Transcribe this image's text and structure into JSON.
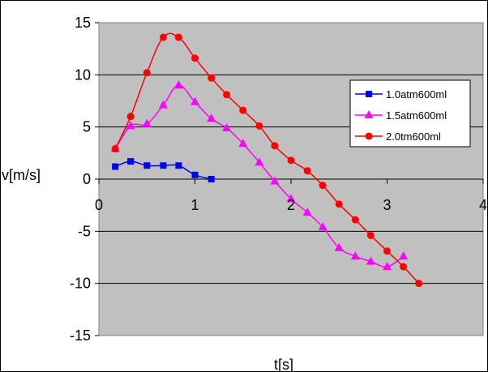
{
  "chart_data": {
    "type": "line",
    "title": "",
    "xlabel": "t[s]",
    "ylabel": "v[m/s]",
    "xlim": [
      0,
      4
    ],
    "ylim": [
      -15,
      15
    ],
    "xticks": [
      "0",
      "1",
      "2",
      "3",
      "4"
    ],
    "yticks": [
      "15",
      "10",
      "5",
      "0",
      "-5",
      "-10",
      "-15"
    ],
    "grid": "horizontal",
    "legend_position": "right",
    "plot_background": "#c0c0c0",
    "series": [
      {
        "name": "1.0atm600ml",
        "color": "#0000ff",
        "marker": "square",
        "x": [
          0.17,
          0.33,
          0.5,
          0.67,
          0.83,
          1.0,
          1.17
        ],
        "y": [
          1.2,
          1.7,
          1.3,
          1.3,
          1.3,
          0.4,
          0.0
        ]
      },
      {
        "name": "1.5atm600ml",
        "color": "#ff00ff",
        "marker": "triangle",
        "x": [
          0.17,
          0.33,
          0.5,
          0.67,
          0.83,
          1.0,
          1.17,
          1.33,
          1.5,
          1.67,
          1.83,
          2.0,
          2.17,
          2.33,
          2.5,
          2.67,
          2.83,
          3.0,
          3.17
        ],
        "y": [
          2.9,
          5.1,
          5.3,
          7.1,
          9.0,
          7.4,
          5.8,
          4.9,
          3.4,
          1.6,
          -0.2,
          -1.9,
          -3.2,
          -4.6,
          -6.6,
          -7.4,
          -7.9,
          -8.4,
          -7.4
        ]
      },
      {
        "name": "2.0tm600ml",
        "color": "#ff0000",
        "marker": "circle",
        "x": [
          0.17,
          0.33,
          0.5,
          0.67,
          0.83,
          1.0,
          1.17,
          1.33,
          1.5,
          1.67,
          1.83,
          2.0,
          2.17,
          2.33,
          2.5,
          2.67,
          2.83,
          3.0,
          3.17,
          3.33
        ],
        "y": [
          2.9,
          6.0,
          10.2,
          13.6,
          13.6,
          11.6,
          9.7,
          8.1,
          6.6,
          5.1,
          3.2,
          1.8,
          0.8,
          -0.6,
          -2.4,
          -3.9,
          -5.4,
          -6.9,
          -8.4,
          -10.0
        ]
      }
    ]
  }
}
